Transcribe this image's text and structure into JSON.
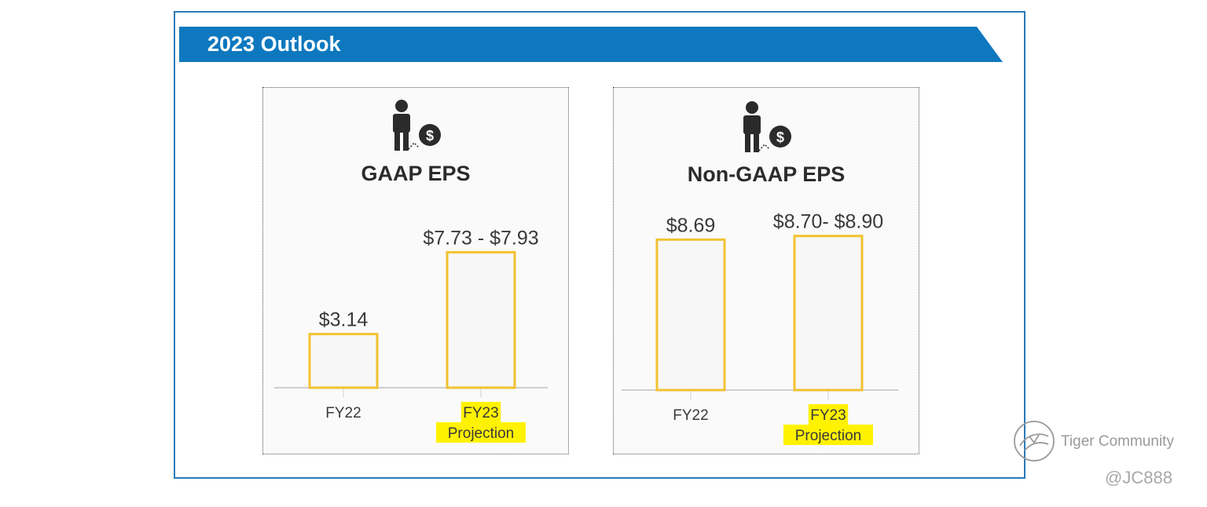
{
  "banner": {
    "title": "2023 Outlook",
    "color": "#0e78bf"
  },
  "chart_data": [
    {
      "type": "bar",
      "title": "GAAP EPS",
      "categories": [
        "FY22",
        "FY23\nProjection"
      ],
      "values": [
        3.14,
        7.93
      ],
      "range": [
        null,
        [
          7.73,
          7.93
        ]
      ],
      "data_labels": [
        "$3.14",
        "$7.73 - $7.93"
      ],
      "highlighted_category": 1,
      "bar_outline_color": "#f2c232",
      "ylim": [
        0,
        10.2
      ],
      "xlabel": "",
      "ylabel": "",
      "grid": false,
      "legend": "none"
    },
    {
      "type": "bar",
      "title": "Non-GAAP EPS",
      "categories": [
        "FY22",
        "FY23\nProjection"
      ],
      "values": [
        8.69,
        8.9
      ],
      "range": [
        null,
        [
          8.7,
          8.9
        ]
      ],
      "data_labels": [
        "$8.69",
        "$8.70- $8.90"
      ],
      "highlighted_category": 1,
      "bar_outline_color": "#f2c232",
      "ylim": [
        0,
        10.2
      ],
      "xlabel": "",
      "ylabel": "",
      "grid": false,
      "legend": "none"
    }
  ],
  "panels": [
    {
      "icon": "person-dollar-icon"
    },
    {
      "icon": "person-dollar-icon"
    }
  ],
  "watermark": {
    "brand": "Tiger Community",
    "handle": "@JC888",
    "icon": "tiger-logo-icon"
  }
}
